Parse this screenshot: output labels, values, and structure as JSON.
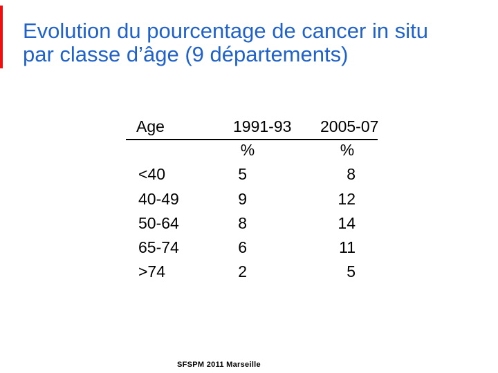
{
  "slide": {
    "title_line1": "Evolution du pourcentage de cancer in situ",
    "title_line2": "par classe d’âge (9 départements)",
    "footer": "SFSPM 2011 Marseille",
    "colors": {
      "title_blue": "#2062c8",
      "accent_bar_red": "#ee1111",
      "table_text": "#000000",
      "background": "#ffffff"
    }
  },
  "table": {
    "col_headers": [
      "Age",
      "1991-93",
      "2005-07"
    ],
    "unit_row": {
      "col2": "%",
      "col3": "%"
    },
    "rows": [
      {
        "age": "<40",
        "p1991_93": "5",
        "p2005_07": "8"
      },
      {
        "age": "40-49",
        "p1991_93": "9",
        "p2005_07": "12"
      },
      {
        "age": "50-64",
        "p1991_93": "8",
        "p2005_07": "14"
      },
      {
        "age": "65-74",
        "p1991_93": "6",
        "p2005_07": "11"
      },
      {
        "age": ">74",
        "p1991_93": "2",
        "p2005_07": "5"
      }
    ]
  }
}
